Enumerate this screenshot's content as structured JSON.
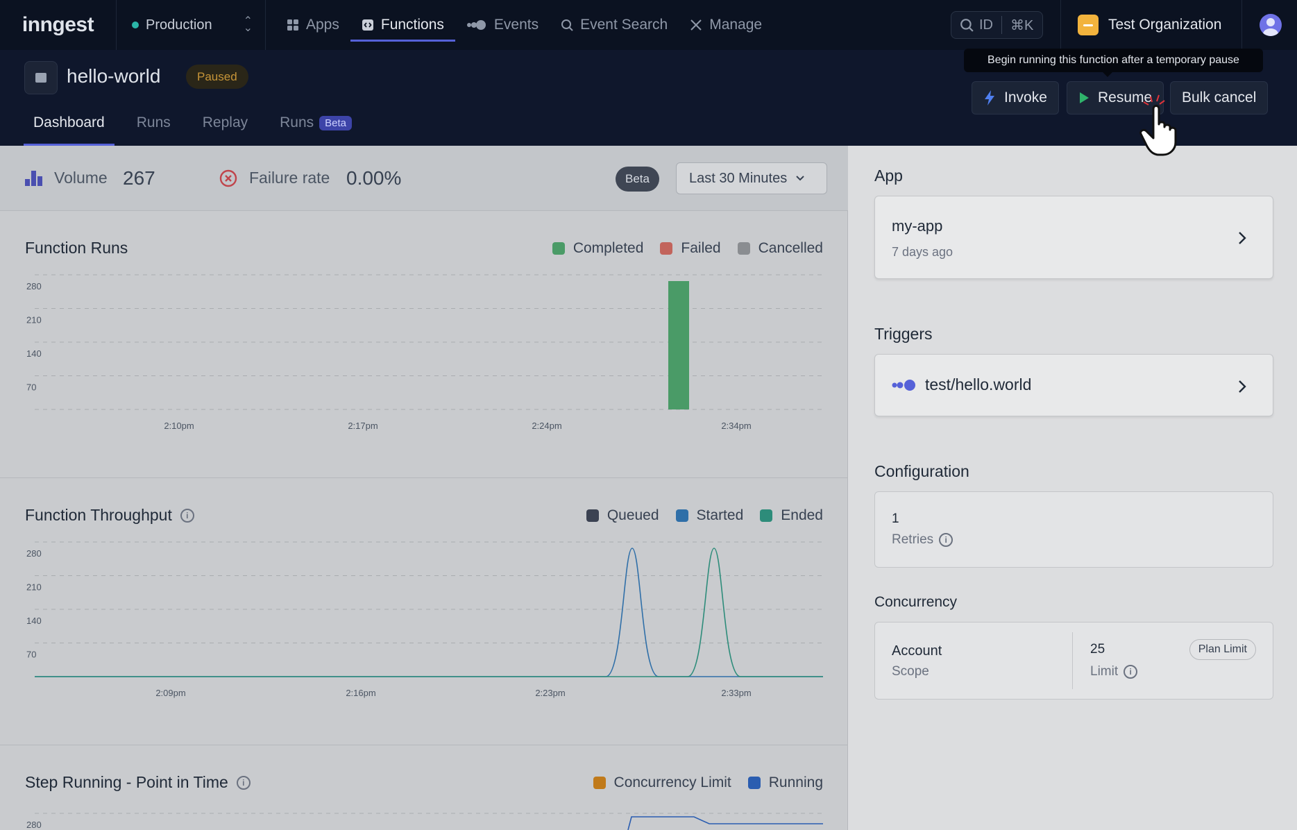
{
  "topbar": {
    "logo": "inngest",
    "environment": "Production",
    "nav": [
      {
        "label": "Apps",
        "icon": "grid-icon"
      },
      {
        "label": "Functions",
        "icon": "function-icon"
      },
      {
        "label": "Events",
        "icon": "events-icon"
      },
      {
        "label": "Event Search",
        "icon": "search-icon"
      },
      {
        "label": "Manage",
        "icon": "tools-icon"
      }
    ],
    "search": {
      "id_label": "ID",
      "shortcut": "⌘K"
    },
    "organization": "Test Organization"
  },
  "function": {
    "name": "hello-world",
    "status": "Paused",
    "tabs": [
      "Dashboard",
      "Runs",
      "Replay",
      "Runs"
    ],
    "beta_tab_badge": "Beta",
    "actions": {
      "invoke": "Invoke",
      "resume": "Resume",
      "bulk_cancel": "Bulk cancel"
    },
    "tooltip": "Begin running this function after a temporary pause"
  },
  "stats": {
    "volume_label": "Volume",
    "volume_value": "267",
    "failure_label": "Failure rate",
    "failure_value": "0.00%",
    "beta_badge": "Beta",
    "time_range": "Last 30 Minutes"
  },
  "chart_data": [
    {
      "type": "bar",
      "title": "Function Runs",
      "series": [
        {
          "name": "Completed",
          "color": "#4a9b67",
          "values": [
            {
              "x": "2:31pm",
              "y": 267
            }
          ]
        },
        {
          "name": "Failed",
          "color": "#c2645c",
          "values": []
        },
        {
          "name": "Cancelled",
          "color": "#8a8d91",
          "values": []
        }
      ],
      "x_ticks": [
        "2:10pm",
        "2:17pm",
        "2:24pm",
        "2:34pm"
      ],
      "y_ticks": [
        70,
        140,
        210,
        280
      ],
      "ylim": [
        0,
        280
      ]
    },
    {
      "type": "line",
      "title": "Function Throughput",
      "series": [
        {
          "name": "Queued",
          "color": "#3b4252",
          "values": []
        },
        {
          "name": "Started",
          "color": "#2f6fa8",
          "values": [
            {
              "x": "2:29pm",
              "y": 267
            }
          ]
        },
        {
          "name": "Ended",
          "color": "#2d8c7a",
          "values": [
            {
              "x": "2:32pm",
              "y": 267
            }
          ]
        }
      ],
      "x_ticks": [
        "2:09pm",
        "2:16pm",
        "2:23pm",
        "2:33pm"
      ],
      "y_ticks": [
        70,
        140,
        210,
        280
      ],
      "ylim": [
        0,
        280
      ]
    },
    {
      "type": "line",
      "title": "Step Running - Point in Time",
      "series": [
        {
          "name": "Concurrency Limit",
          "color": "#c07a1a",
          "values": []
        },
        {
          "name": "Running",
          "color": "#2a5db0",
          "values": []
        }
      ],
      "y_ticks": [
        280
      ]
    }
  ],
  "right_panel": {
    "app_label": "App",
    "app_name": "my-app",
    "app_time": "7 days ago",
    "triggers_label": "Triggers",
    "trigger": "test/hello.world",
    "config_label": "Configuration",
    "retries_value": "1",
    "retries_label": "Retries",
    "concurrency_label": "Concurrency",
    "scope_value": "Account",
    "scope_label": "Scope",
    "limit_value": "25",
    "limit_label": "Limit",
    "plan_limit": "Plan Limit"
  }
}
